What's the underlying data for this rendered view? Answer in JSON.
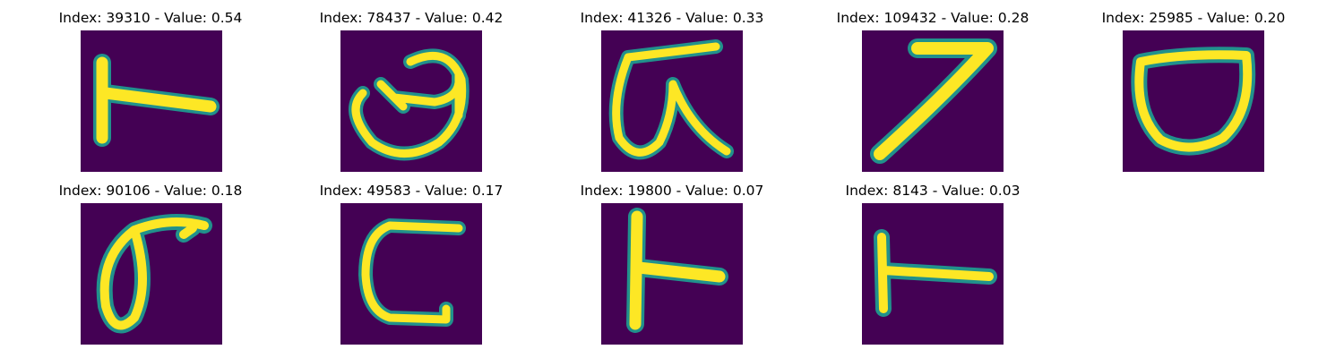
{
  "colors": {
    "background": "#440154",
    "edge": "#21918c",
    "stroke": "#fde725",
    "mid": "#5ec962"
  },
  "panels": [
    {
      "index": "39310",
      "value": "0.54",
      "title": "Index: 39310 - Value: 0.54",
      "shape": "t-rotated",
      "icon": "handwritten-glyph-icon"
    },
    {
      "index": "78437",
      "value": "0.42",
      "title": "Index: 78437 - Value: 0.42",
      "shape": "loop-q",
      "icon": "handwritten-glyph-icon"
    },
    {
      "index": "41326",
      "value": "0.33",
      "title": "Index: 41326 - Value: 0.33",
      "shape": "loop-lambda",
      "icon": "handwritten-glyph-icon"
    },
    {
      "index": "109432",
      "value": "0.28",
      "title": "Index: 109432 - Value: 0.28",
      "shape": "seven",
      "icon": "handwritten-glyph-icon"
    },
    {
      "index": "25985",
      "value": "0.20",
      "title": "Index: 25985 - Value: 0.20",
      "shape": "cup",
      "icon": "handwritten-glyph-icon"
    },
    {
      "index": "90106",
      "value": "0.18",
      "title": "Index: 90106 - Value: 0.18",
      "shape": "zero-flag",
      "icon": "handwritten-glyph-icon"
    },
    {
      "index": "49583",
      "value": "0.17",
      "title": "Index: 49583 - Value: 0.17",
      "shape": "c-shape",
      "icon": "handwritten-glyph-icon"
    },
    {
      "index": "19800",
      "value": "0.07",
      "title": "Index: 19800 - Value: 0.07",
      "shape": "t-rotated-2",
      "icon": "handwritten-glyph-icon"
    },
    {
      "index": "8143",
      "value": "0.03",
      "title": "Index: 8143 - Value: 0.03",
      "shape": "t-rotated-3",
      "icon": "handwritten-glyph-icon"
    }
  ]
}
